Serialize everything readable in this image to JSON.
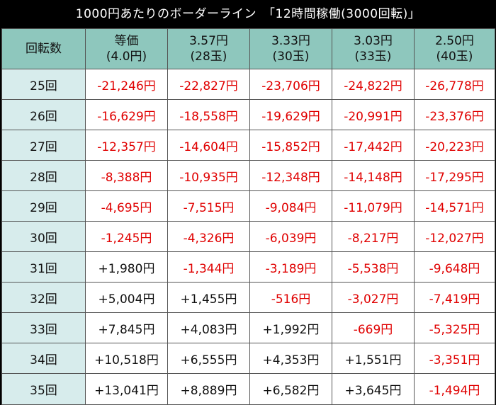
{
  "title": "1000円あたりのボーダーライン　「12時間稼働(3000回転)」",
  "header": {
    "row_label": "回転数",
    "columns": [
      {
        "line1": "等価",
        "line2": "(4.0円)"
      },
      {
        "line1": "3.57円",
        "line2": "(28玉)"
      },
      {
        "line1": "3.33円",
        "line2": "(30玉)"
      },
      {
        "line1": "3.03円",
        "line2": "(33玉)"
      },
      {
        "line1": "2.50円",
        "line2": "(40玉)"
      }
    ]
  },
  "rows": [
    {
      "label": "25回",
      "values": [
        "-21,246円",
        "-22,827円",
        "-23,706円",
        "-24,822円",
        "-26,778円"
      ]
    },
    {
      "label": "26回",
      "values": [
        "-16,629円",
        "-18,558円",
        "-19,629円",
        "-20,991円",
        "-23,376円"
      ]
    },
    {
      "label": "27回",
      "values": [
        "-12,357円",
        "-14,604円",
        "-15,852円",
        "-17,442円",
        "-20,223円"
      ]
    },
    {
      "label": "28回",
      "values": [
        "-8,388円",
        "-10,935円",
        "-12,348円",
        "-14,148円",
        "-17,295円"
      ]
    },
    {
      "label": "29回",
      "values": [
        "-4,695円",
        "-7,515円",
        "-9,084円",
        "-11,079円",
        "-14,571円"
      ]
    },
    {
      "label": "30回",
      "values": [
        "-1,245円",
        "-4,326円",
        "-6,039円",
        "-8,217円",
        "-12,027円"
      ]
    },
    {
      "label": "31回",
      "values": [
        "+1,980円",
        "-1,344円",
        "-3,189円",
        "-5,538円",
        "-9,648円"
      ]
    },
    {
      "label": "32回",
      "values": [
        "+5,004円",
        "+1,455円",
        "-516円",
        "-3,027円",
        "-7,419円"
      ]
    },
    {
      "label": "33回",
      "values": [
        "+7,845円",
        "+4,083円",
        "+1,992円",
        "-669円",
        "-5,325円"
      ]
    },
    {
      "label": "34回",
      "values": [
        "+10,518円",
        "+6,555円",
        "+4,353円",
        "+1,551円",
        "-3,351円"
      ]
    },
    {
      "label": "35回",
      "values": [
        "+13,041円",
        "+8,889円",
        "+6,582円",
        "+3,645円",
        "-1,494円"
      ]
    }
  ],
  "colors": {
    "negative": "#e00000",
    "positive": "#111111",
    "header_bg": "#8ec7bd",
    "row_label_bg": "#d7ecec"
  }
}
